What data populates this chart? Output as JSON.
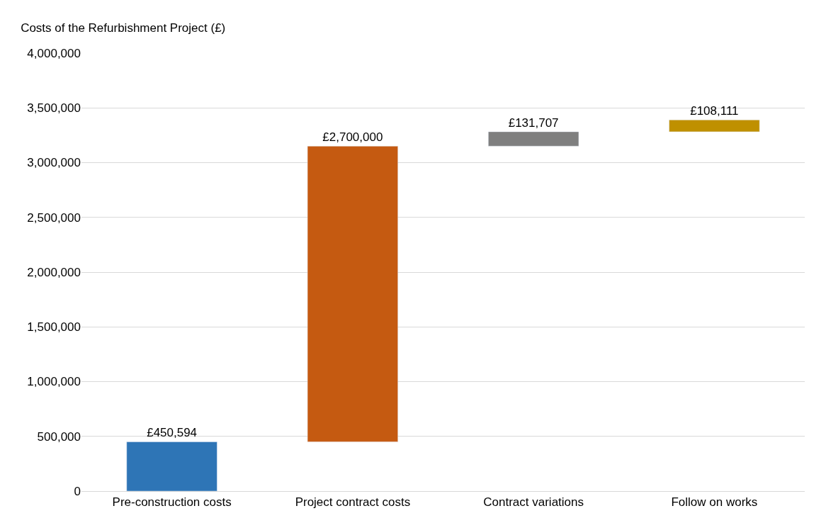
{
  "chart_data": {
    "type": "bar",
    "title": "Costs of the Refurbishment Project (£)",
    "categories": [
      "Pre-construction costs",
      "Project contract costs",
      "Contract variations",
      "Follow on works"
    ],
    "values": [
      450594,
      2700000,
      131707,
      108111
    ],
    "base": [
      0,
      450594,
      3150594,
      3282301
    ],
    "colors": [
      "#2e75b6",
      "#c55a11",
      "#7f7f7f",
      "#bf9000"
    ],
    "value_labels": [
      "£450,594",
      "£2,700,000",
      "£131,707",
      "£108,111"
    ],
    "ylim": [
      0,
      4000000
    ],
    "yticks": [
      {
        "value": 0,
        "label": "0"
      },
      {
        "value": 500000,
        "label": "500,000"
      },
      {
        "value": 1000000,
        "label": "1,000,000"
      },
      {
        "value": 1500000,
        "label": "1,500,000"
      },
      {
        "value": 2000000,
        "label": "2,000,000"
      },
      {
        "value": 2500000,
        "label": "2,500,000"
      },
      {
        "value": 3000000,
        "label": "3,000,000"
      },
      {
        "value": 3500000,
        "label": "3,500,000"
      },
      {
        "value": 4000000,
        "label": "4,000,000"
      }
    ],
    "grid": "y"
  }
}
